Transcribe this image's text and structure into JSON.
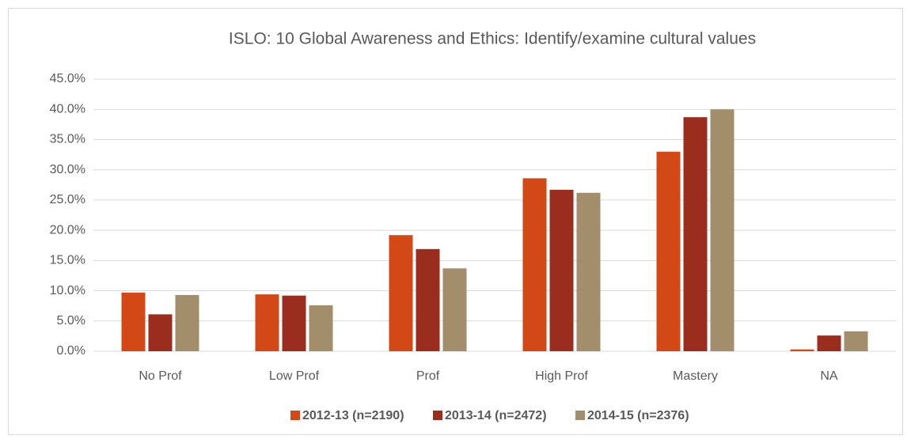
{
  "chart_data": {
    "type": "bar",
    "title": "ISLO: 10 Global Awareness and Ethics: Identify/examine cultural values",
    "categories": [
      "No Prof",
      "Low Prof",
      "Prof",
      "High Prof",
      "Mastery",
      "NA"
    ],
    "series": [
      {
        "name": "2012-13 (n=2190)",
        "color": "#d34817",
        "values": [
          9.7,
          9.4,
          19.2,
          28.6,
          33.0,
          0.3
        ]
      },
      {
        "name": "2013-14 (n=2472)",
        "color": "#9b2d1f",
        "values": [
          6.1,
          9.2,
          16.9,
          26.7,
          38.7,
          2.6
        ]
      },
      {
        "name": "2014-15 (n=2376)",
        "color": "#a28e6a",
        "values": [
          9.3,
          7.6,
          13.7,
          26.2,
          40.0,
          3.3
        ]
      }
    ],
    "ylim": [
      0,
      45
    ],
    "yticks": [
      {
        "value": 0,
        "label": "0.0%"
      },
      {
        "value": 5,
        "label": "5.0%"
      },
      {
        "value": 10,
        "label": "10.0%"
      },
      {
        "value": 15,
        "label": "15.0%"
      },
      {
        "value": 20,
        "label": "20.0%"
      },
      {
        "value": 25,
        "label": "25.0%"
      },
      {
        "value": 30,
        "label": "30.0%"
      },
      {
        "value": 35,
        "label": "35.0%"
      },
      {
        "value": 40,
        "label": "40.0%"
      },
      {
        "value": 45,
        "label": "45.0%"
      }
    ],
    "grid": true,
    "legend": "bottom"
  }
}
